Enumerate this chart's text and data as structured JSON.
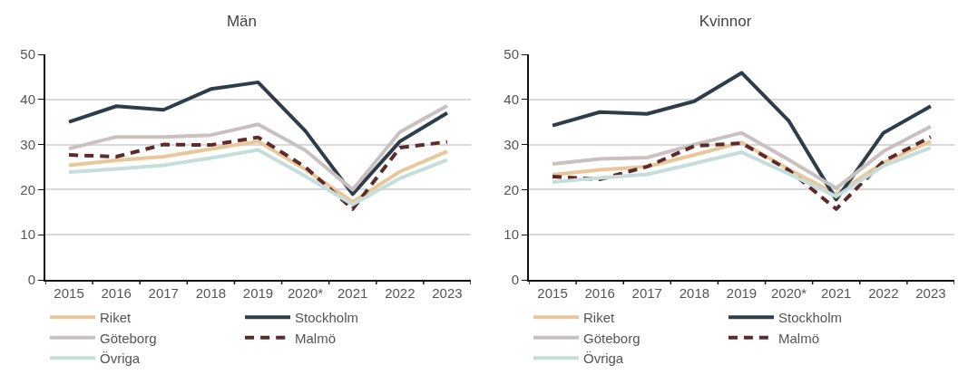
{
  "chart_data": [
    {
      "type": "line",
      "title": "Män",
      "categories": [
        "2015",
        "2016",
        "2017",
        "2018",
        "2019",
        "2020*",
        "2021",
        "2022",
        "2023"
      ],
      "ylim": [
        0,
        50
      ],
      "yticks": [
        0,
        10,
        20,
        30,
        40,
        50
      ],
      "grid": "y",
      "legend": "bottom",
      "marker": "none",
      "series": [
        {
          "name": "Riket",
          "color": "#e8c89a",
          "values": [
            25.4,
            26.5,
            27.3,
            29,
            30.7,
            24.5,
            17.3,
            24,
            28.5
          ]
        },
        {
          "name": "Stockholm",
          "color": "#2d3e4a",
          "values": [
            35,
            38.5,
            37.7,
            42.3,
            43.8,
            33,
            19,
            30.7,
            37
          ]
        },
        {
          "name": "Göteborg",
          "color": "#c9c0c0",
          "values": [
            29.1,
            31.7,
            31.7,
            32.1,
            34.5,
            28.7,
            20,
            32.8,
            38.6
          ]
        },
        {
          "name": "Malmö",
          "color": "#5e2a2a",
          "line_style": "dashed",
          "values": [
            27.7,
            27.3,
            30,
            29.9,
            31.6,
            25,
            15.7,
            29.3,
            30.6
          ]
        },
        {
          "name": "Övriga",
          "color": "#c5dedc",
          "values": [
            23.9,
            24.6,
            25.4,
            27,
            28.8,
            23,
            16.7,
            22.5,
            26.6
          ]
        }
      ]
    },
    {
      "type": "line",
      "title": "Kvinnor",
      "categories": [
        "2015",
        "2016",
        "2017",
        "2018",
        "2019",
        "2020*",
        "2021",
        "2022",
        "2023"
      ],
      "ylim": [
        0,
        50
      ],
      "yticks": [
        0,
        10,
        20,
        30,
        40,
        50
      ],
      "grid": "y",
      "legend": "bottom",
      "marker": "none",
      "series": [
        {
          "name": "Riket",
          "color": "#e8c89a",
          "values": [
            23.3,
            24.4,
            25.1,
            27.7,
            30.5,
            24.5,
            19,
            26,
            30.7
          ]
        },
        {
          "name": "Stockholm",
          "color": "#2d3e4a",
          "values": [
            34.2,
            37.2,
            36.8,
            39.6,
            45.9,
            35.2,
            17.8,
            32.6,
            38.5
          ]
        },
        {
          "name": "Göteborg",
          "color": "#c9c0c0",
          "values": [
            25.7,
            26.8,
            27.1,
            30,
            32.6,
            26.6,
            20.3,
            28.5,
            34
          ]
        },
        {
          "name": "Malmö",
          "color": "#5e2a2a",
          "line_style": "dashed",
          "values": [
            22.9,
            22.3,
            25.1,
            29.7,
            30.3,
            24.3,
            15.7,
            26.3,
            31.7
          ]
        },
        {
          "name": "Övriga",
          "color": "#c5dedc",
          "values": [
            21.7,
            22.6,
            23.4,
            25.8,
            28.3,
            23.5,
            18.5,
            25.3,
            29.3
          ]
        }
      ]
    }
  ]
}
